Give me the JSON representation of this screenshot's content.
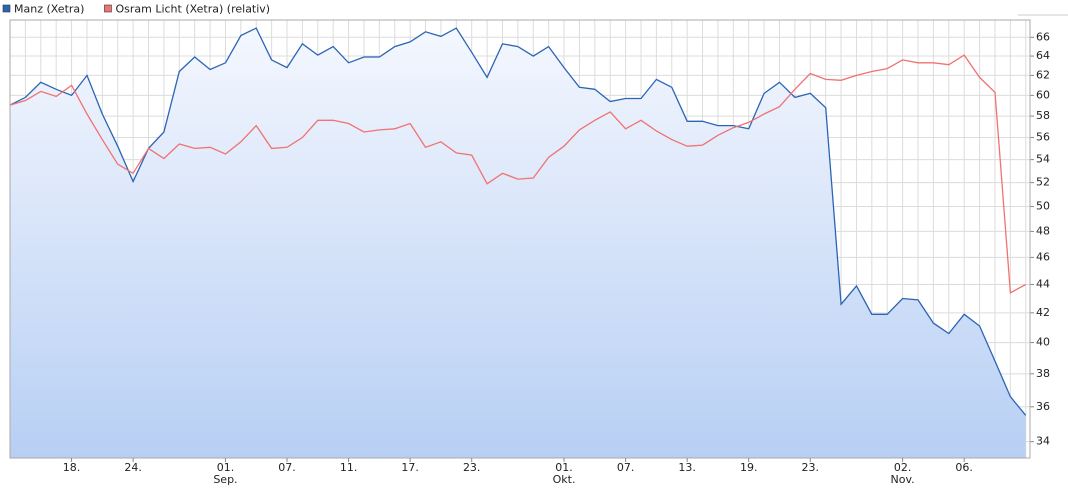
{
  "chart_data": {
    "type": "line",
    "categories": [
      null,
      null,
      null,
      null,
      "18.",
      null,
      null,
      null,
      "24.",
      null,
      null,
      null,
      null,
      null,
      "01. Sep.",
      null,
      null,
      null,
      "07.",
      null,
      null,
      null,
      "11.",
      null,
      null,
      null,
      "17.",
      null,
      null,
      null,
      "23.",
      null,
      null,
      null,
      null,
      null,
      "01. Okt.",
      null,
      null,
      null,
      "07.",
      null,
      null,
      null,
      "13.",
      null,
      null,
      null,
      "19.",
      null,
      null,
      null,
      "23.",
      null,
      null,
      null,
      null,
      null,
      "02. Nov.",
      null,
      null,
      null,
      "06.",
      null,
      null,
      null,
      null
    ],
    "series": [
      {
        "name": "Manz (Xetra)",
        "color": "#2c64b4",
        "area": true,
        "values": [
          59.05,
          59.8,
          61.3,
          60.6,
          60.0,
          62.0,
          58.2,
          55.2,
          52.1,
          55.0,
          56.5,
          62.4,
          63.9,
          62.6,
          63.3,
          66.2,
          67.0,
          63.6,
          62.8,
          65.3,
          64.1,
          65.0,
          63.3,
          63.9,
          63.9,
          65.0,
          65.5,
          66.6,
          66.1,
          67.0,
          64.4,
          61.8,
          65.3,
          65.0,
          64.0,
          65.0,
          62.8,
          60.8,
          60.6,
          59.4,
          59.7,
          59.7,
          61.6,
          60.8,
          57.5,
          57.5,
          57.1,
          57.1,
          56.8,
          60.2,
          61.3,
          59.8,
          60.2,
          58.8,
          42.6,
          43.9,
          41.9,
          41.9,
          43.0,
          42.9,
          41.3,
          40.6,
          41.9,
          41.1,
          38.8,
          36.6,
          35.5
        ]
      },
      {
        "name": "Osram Licht (Xetra) (relativ)",
        "color": "#f07272",
        "values": [
          59.05,
          59.5,
          60.4,
          59.9,
          61.0,
          58.2,
          55.8,
          53.6,
          52.8,
          55.0,
          54.1,
          55.4,
          55.0,
          55.1,
          54.5,
          55.6,
          57.1,
          55.0,
          55.1,
          56.0,
          57.6,
          57.6,
          57.3,
          56.5,
          56.7,
          56.8,
          57.3,
          55.1,
          55.6,
          54.6,
          54.4,
          51.9,
          52.8,
          52.3,
          52.4,
          54.2,
          55.2,
          56.7,
          57.6,
          58.4,
          56.8,
          57.6,
          56.6,
          55.8,
          55.2,
          55.3,
          56.2,
          56.9,
          57.4,
          58.2,
          58.9,
          60.6,
          62.2,
          61.6,
          61.5,
          62.0,
          62.4,
          62.7,
          63.6,
          63.3,
          63.3,
          63.1,
          64.1,
          61.8,
          60.3,
          43.4,
          44.0
        ]
      }
    ],
    "ylim": [
      33.1,
      67.9
    ],
    "ylog": true,
    "yticks": [
      34,
      36,
      38,
      40,
      42,
      44,
      46,
      48,
      50,
      52,
      54,
      56,
      58,
      60,
      62,
      64,
      66
    ],
    "grid": true
  }
}
